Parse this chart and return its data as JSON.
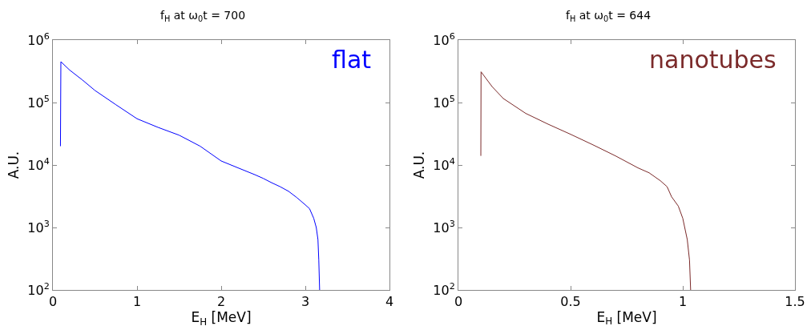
{
  "chart_data": [
    {
      "type": "line",
      "title": "f$_{H}$ at ω$_{0}$t = 700",
      "xlabel": "E$_{H}$ [MeV]",
      "ylabel": "A.U.",
      "log": "y",
      "xlim": [
        0,
        4
      ],
      "xticks": [
        0,
        1,
        2,
        3,
        4
      ],
      "ylim": [
        100,
        1000000
      ],
      "yticks": [
        {
          "value": 100,
          "label": "10$^{2}$"
        },
        {
          "value": 1000,
          "label": "10$^{3}$"
        },
        {
          "value": 10000,
          "label": "10$^{4}$"
        },
        {
          "value": 100000,
          "label": "10$^{5}$"
        },
        {
          "value": 1000000,
          "label": "10$^{6}$"
        }
      ],
      "series": [
        {
          "name": "flat",
          "color": "#0000ff",
          "x": [
            0.09,
            0.095,
            0.2,
            0.35,
            0.5,
            0.75,
            1.0,
            1.25,
            1.5,
            1.75,
            2.0,
            2.2,
            2.4,
            2.5,
            2.6,
            2.7,
            2.8,
            2.9,
            3.0,
            3.05,
            3.1,
            3.13,
            3.15,
            3.16,
            3.17
          ],
          "values": [
            20000,
            450000,
            330000,
            230000,
            156000,
            92000,
            55000,
            40000,
            30000,
            20000,
            11600,
            9000,
            7000,
            6100,
            5200,
            4500,
            3800,
            3000,
            2300,
            2000,
            1400,
            1000,
            640,
            300,
            100
          ]
        }
      ]
    },
    {
      "type": "line",
      "title": "f$_{H}$ at ω$_{0}$t = 644",
      "xlabel": "E$_{H}$ [MeV]",
      "ylabel": "A.U.",
      "log": "y",
      "xlim": [
        0,
        1.5
      ],
      "xticks": [
        0,
        0.5,
        1,
        1.5
      ],
      "ylim": [
        100,
        1000000
      ],
      "yticks": [
        {
          "value": 100,
          "label": "10$^{2}$"
        },
        {
          "value": 1000,
          "label": "10$^{3}$"
        },
        {
          "value": 10000,
          "label": "10$^{4}$"
        },
        {
          "value": 100000,
          "label": "10$^{5}$"
        },
        {
          "value": 1000000,
          "label": "10$^{6}$"
        }
      ],
      "series": [
        {
          "name": "nanotubes",
          "color": "#7b2a2a",
          "x": [
            0.1,
            0.101,
            0.15,
            0.2,
            0.3,
            0.4,
            0.5,
            0.6,
            0.7,
            0.8,
            0.85,
            0.9,
            0.93,
            0.95,
            0.98,
            1.0,
            1.02,
            1.03,
            1.035
          ],
          "values": [
            14000,
            310000,
            180000,
            116000,
            67000,
            45000,
            31000,
            21000,
            14000,
            9000,
            7500,
            5600,
            4500,
            3100,
            2200,
            1400,
            640,
            300,
            100
          ]
        }
      ]
    }
  ]
}
